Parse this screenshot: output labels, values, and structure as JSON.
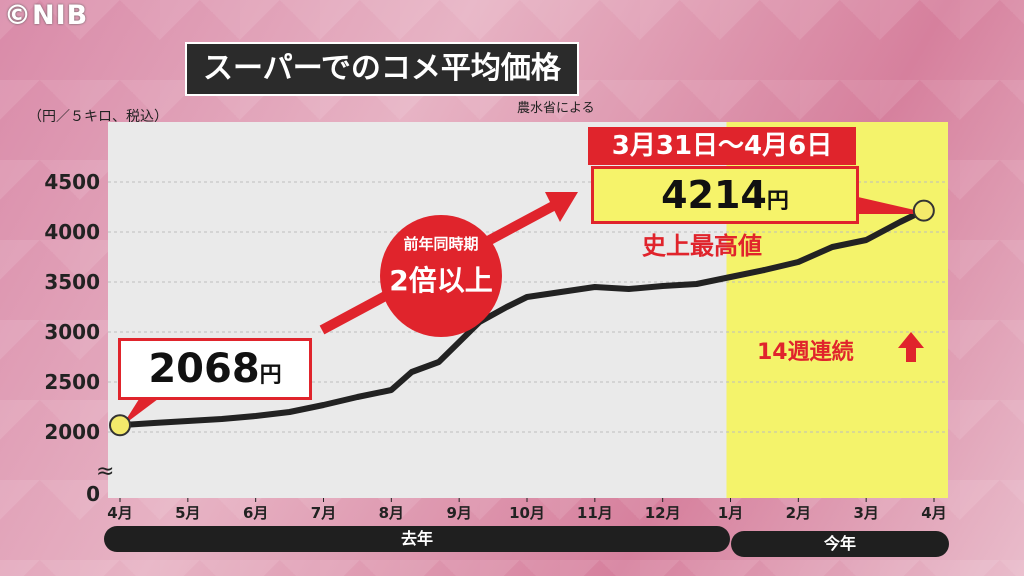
{
  "copyright": "©NIB",
  "title": "スーパーでのコメ平均価格",
  "source_note": "農水省による",
  "unit_note": "（円／５キロ、税込）",
  "annotations": {
    "start_value": "2068",
    "start_unit": "円",
    "peak_date": "3月31日～4月6日",
    "peak_value": "4214",
    "peak_unit": "円",
    "record": "史上最高値",
    "yoy_line1": "前年同時期",
    "yoy_line2": "2倍以上",
    "weeks": "14週連続"
  },
  "periods": {
    "last_year": "去年",
    "this_year": "今年"
  },
  "colors": {
    "accent": "#e0242c",
    "highlight": "#f6f36a",
    "line": "#222222",
    "marker": "#f4ea6b"
  },
  "chart_data": {
    "type": "line",
    "title": "スーパーでのコメ平均価格",
    "ylabel": "（円／５キロ、税込）",
    "xlabel": "",
    "ylim": [
      0,
      4500
    ],
    "y_ticks": [
      0,
      2000,
      2500,
      3000,
      3500,
      4000,
      4500
    ],
    "x_ticks": [
      "4月",
      "5月",
      "6月",
      "7月",
      "8月",
      "9月",
      "10月",
      "11月",
      "12月",
      "1月",
      "2月",
      "3月",
      "4月"
    ],
    "grid": true,
    "axis_break": "≈",
    "highlight_region": {
      "from": "1月",
      "to": "4月"
    },
    "series": [
      {
        "values_x_month_index": [
          0,
          0.5,
          1,
          1.5,
          2,
          2.5,
          3,
          3.5,
          4,
          4.3,
          4.7,
          5,
          5.3,
          5.7,
          6,
          6.5,
          7,
          7.5,
          8,
          8.5,
          9,
          9.5,
          10,
          10.5,
          11,
          11.5,
          11.85
        ],
        "values_y": [
          2068,
          2090,
          2110,
          2130,
          2160,
          2200,
          2270,
          2350,
          2420,
          2600,
          2700,
          2900,
          3100,
          3250,
          3350,
          3400,
          3450,
          3430,
          3460,
          3480,
          3550,
          3620,
          3700,
          3850,
          3920,
          4100,
          4214
        ]
      }
    ]
  }
}
